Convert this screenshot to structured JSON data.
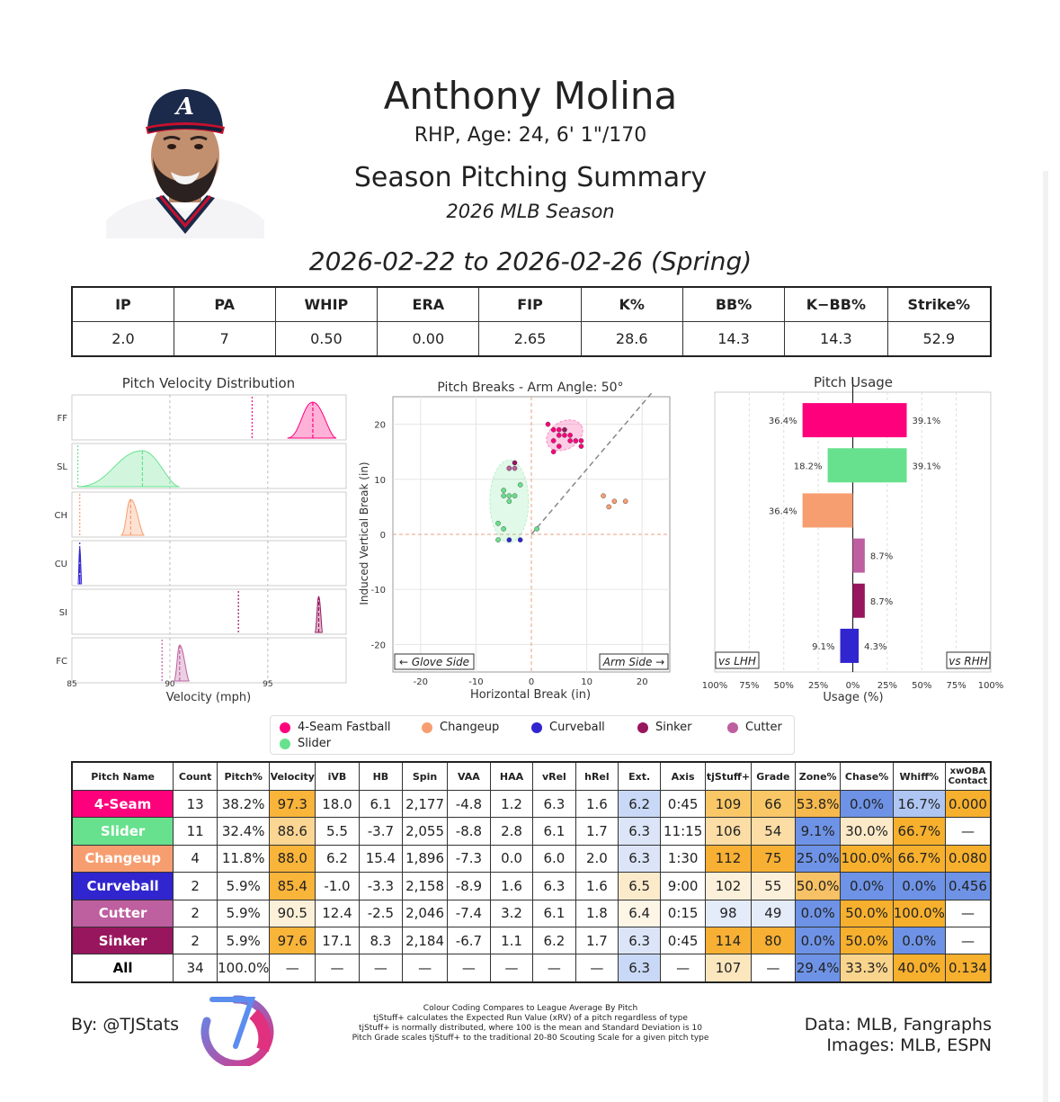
{
  "header": {
    "name": "Anthony Molina",
    "info": "RHP, Age: 24, 6' 1\"/170",
    "summary_title": "Season Pitching Summary",
    "season": "2026 MLB Season",
    "date_range": "2026-02-22 to 2026-02-26 (Spring)"
  },
  "colors": {
    "FF": "#FF007D",
    "SL": "#67E18D",
    "CH": "#F79E70",
    "CU": "#3025CE",
    "SI": "#98165D",
    "FC": "#BE5FA0",
    "good": "#F7B733",
    "bad": "#5B8DEF"
  },
  "stats": {
    "headers": [
      "IP",
      "PA",
      "WHIP",
      "ERA",
      "FIP",
      "K%",
      "BB%",
      "K−BB%",
      "Strike%"
    ],
    "values": [
      "2.0",
      "7",
      "0.50",
      "0.00",
      "2.65",
      "28.6",
      "14.3",
      "14.3",
      "52.9"
    ]
  },
  "chart_data": [
    {
      "type": "area",
      "title": "Pitch Velocity Distribution",
      "xlabel": "Velocity (mph)",
      "xlim": [
        85,
        99
      ],
      "xticks": [
        "85",
        "90",
        "95"
      ],
      "rows": [
        {
          "label": "FF",
          "color": "#FF007D",
          "min": 96.0,
          "max": 98.5,
          "mean": 97.3,
          "league": 94.2
        },
        {
          "label": "SL",
          "color": "#67E18D",
          "min": 85.3,
          "max": 90.5,
          "mean": 88.6,
          "league": 85.3
        },
        {
          "label": "CH",
          "color": "#F79E70",
          "min": 87.5,
          "max": 88.7,
          "mean": 88.0,
          "league": 85.4
        },
        {
          "label": "CU",
          "color": "#3025CE",
          "min": 85.3,
          "max": 85.5,
          "mean": 85.4,
          "league": 85.4
        },
        {
          "label": "SI",
          "color": "#98165D",
          "min": 97.4,
          "max": 97.8,
          "mean": 97.6,
          "league": 93.5
        },
        {
          "label": "FC",
          "color": "#BE5FA0",
          "min": 90.2,
          "max": 91.0,
          "mean": 90.5,
          "league": 89.6
        }
      ]
    },
    {
      "type": "scatter",
      "title": "Pitch Breaks - Arm Angle: 50°",
      "xlabel": "Horizontal Break (in)",
      "ylabel": "Induced Vertical Break (in)",
      "xlim": [
        -25,
        25
      ],
      "ylim": [
        -25,
        25
      ],
      "xticks": [
        "-20",
        "-10",
        "0",
        "10",
        "20"
      ],
      "yticks": [
        "20",
        "10",
        "0",
        "-10",
        "-20"
      ],
      "glove_label": "← Glove Side",
      "arm_label": "Arm Side →",
      "series": [
        {
          "code": "FF",
          "color": "#FF007D",
          "points": [
            [
              3,
              20
            ],
            [
              4,
              19
            ],
            [
              5,
              19
            ],
            [
              5,
              18
            ],
            [
              6,
              18
            ],
            [
              7,
              17
            ],
            [
              7,
              18
            ],
            [
              8,
              17
            ],
            [
              9,
              17
            ],
            [
              9,
              16
            ],
            [
              4,
              17
            ],
            [
              5,
              16
            ],
            [
              4,
              15
            ]
          ]
        },
        {
          "code": "SL",
          "color": "#67E18D",
          "points": [
            [
              -4,
              12
            ],
            [
              -5,
              8
            ],
            [
              -4,
              7
            ],
            [
              -3,
              7
            ],
            [
              -5,
              7
            ],
            [
              -2,
              9
            ],
            [
              -6,
              2
            ],
            [
              -5,
              1
            ],
            [
              -6,
              -1
            ],
            [
              1,
              1
            ],
            [
              -4,
              6
            ]
          ]
        },
        {
          "code": "CH",
          "color": "#F79E70",
          "points": [
            [
              13,
              7
            ],
            [
              15,
              6
            ],
            [
              17,
              6
            ],
            [
              14,
              5
            ]
          ]
        },
        {
          "code": "CU",
          "color": "#3025CE",
          "points": [
            [
              -4,
              -1
            ],
            [
              -2,
              -1
            ]
          ]
        },
        {
          "code": "SI",
          "color": "#98165D",
          "points": [
            [
              -3,
              13
            ],
            [
              6,
              19
            ]
          ]
        },
        {
          "code": "FC",
          "color": "#BE5FA0",
          "points": [
            [
              -3,
              12
            ],
            [
              -4,
              12
            ]
          ]
        }
      ],
      "ellipses": [
        {
          "color": "#FF007D",
          "cx": 6,
          "cy": 18,
          "rx": 3.5,
          "ry": 2.5,
          "rot": -30
        },
        {
          "color": "#67E18D",
          "cx": -4,
          "cy": 6,
          "rx": 3.5,
          "ry": 7.5,
          "rot": 0
        }
      ]
    },
    {
      "type": "bar",
      "title": "Pitch Usage",
      "xlabel": "Usage (%)",
      "xlim": [
        -100,
        100
      ],
      "xticks": [
        "100%",
        "75%",
        "50%",
        "25%",
        "0%",
        "25%",
        "50%",
        "75%",
        "100%"
      ],
      "lhh_label": "vs LHH",
      "rhh_label": "vs RHH",
      "series": [
        {
          "code": "FF",
          "color": "#FF007D",
          "lhh": 36.4,
          "rhh": 39.1,
          "lhh_label": "36.4%",
          "rhh_label": "39.1%"
        },
        {
          "code": "SL",
          "color": "#67E18D",
          "lhh": 18.2,
          "rhh": 39.1,
          "lhh_label": "18.2%",
          "rhh_label": "39.1%"
        },
        {
          "code": "CH",
          "color": "#F79E70",
          "lhh": 36.4,
          "rhh": 0,
          "lhh_label": "36.4%",
          "rhh_label": ""
        },
        {
          "code": "FC",
          "color": "#BE5FA0",
          "lhh": 0,
          "rhh": 8.7,
          "lhh_label": "",
          "rhh_label": "8.7%"
        },
        {
          "code": "SI",
          "color": "#98165D",
          "lhh": 0,
          "rhh": 8.7,
          "lhh_label": "",
          "rhh_label": "8.7%"
        },
        {
          "code": "CU",
          "color": "#3025CE",
          "lhh": 9.1,
          "rhh": 4.3,
          "lhh_label": "9.1%",
          "rhh_label": "4.3%"
        }
      ]
    }
  ],
  "legend": {
    "items": [
      {
        "label": "4-Seam Fastball",
        "color": "#FF007D"
      },
      {
        "label": "Changeup",
        "color": "#F79E70"
      },
      {
        "label": "Curveball",
        "color": "#3025CE"
      },
      {
        "label": "Sinker",
        "color": "#98165D"
      },
      {
        "label": "Cutter",
        "color": "#BE5FA0"
      },
      {
        "label": "Slider",
        "color": "#67E18D"
      }
    ]
  },
  "pitch_table": {
    "headers": [
      "Pitch Name",
      "Count",
      "Pitch%",
      "Velocity",
      "iVB",
      "HB",
      "Spin",
      "VAA",
      "HAA",
      "vRel",
      "hRel",
      "Ext.",
      "Axis",
      "tjStuff+",
      "Grade",
      "Zone%",
      "Chase%",
      "Whiff%",
      "xwOBA Contact"
    ],
    "rows": [
      {
        "color": "#FF007D",
        "cells": [
          "4-Seam",
          "13",
          "38.2%",
          "97.3",
          "18.0",
          "6.1",
          "2,177",
          "-4.8",
          "1.2",
          "6.3",
          "1.6",
          "6.2",
          "0:45",
          "109",
          "66",
          "53.8%",
          "0.0%",
          "16.7%",
          "0.000"
        ],
        "shade": [
          "",
          "",
          "",
          "#F9B43A",
          "",
          "",
          "",
          "",
          "",
          "",
          "",
          "#C9D8F6",
          "",
          "#F9C766",
          "#F9C766",
          "#F6B94E",
          "#6E93E6",
          "#AFC5F2",
          "#F6B02E"
        ]
      },
      {
        "color": "#67E18D",
        "cells": [
          "Slider",
          "11",
          "32.4%",
          "88.6",
          "5.5",
          "-3.7",
          "2,055",
          "-8.8",
          "2.8",
          "6.1",
          "1.7",
          "6.3",
          "11:15",
          "106",
          "54",
          "9.1%",
          "30.0%",
          "66.7%",
          "—"
        ],
        "shade": [
          "",
          "",
          "",
          "#FBD693",
          "",
          "",
          "",
          "",
          "",
          "",
          "",
          "#DCE5F7",
          "",
          "#FBDDA5",
          "#FBDDA5",
          "#6E93E6",
          "#FBE9C8",
          "#F6B02E",
          ""
        ]
      },
      {
        "color": "#F79E70",
        "cells": [
          "Changeup",
          "4",
          "11.8%",
          "88.0",
          "6.2",
          "15.4",
          "1,896",
          "-7.3",
          "0.0",
          "6.0",
          "2.0",
          "6.3",
          "1:30",
          "112",
          "75",
          "25.0%",
          "100.0%",
          "66.7%",
          "0.080"
        ],
        "shade": [
          "",
          "",
          "",
          "#F9B43A",
          "",
          "",
          "",
          "",
          "",
          "",
          "",
          "#DCE5F7",
          "",
          "#F7B033",
          "#F7B033",
          "#6E93E6",
          "#F6B02E",
          "#F6B02E",
          "#F6B02E"
        ]
      },
      {
        "color": "#3025CE",
        "cells": [
          "Curveball",
          "2",
          "5.9%",
          "85.4",
          "-1.0",
          "-3.3",
          "2,158",
          "-8.9",
          "1.6",
          "6.3",
          "1.6",
          "6.5",
          "9:00",
          "102",
          "55",
          "50.0%",
          "0.0%",
          "0.0%",
          "0.456"
        ],
        "shade": [
          "",
          "",
          "",
          "#F9B43A",
          "",
          "",
          "",
          "",
          "",
          "",
          "",
          "#FCEBCB",
          "",
          "#FCF0DA",
          "#FCF0DA",
          "#F7C165",
          "#6E93E6",
          "#6E93E6",
          "#6E93E6"
        ]
      },
      {
        "color": "#BE5FA0",
        "cells": [
          "Cutter",
          "2",
          "5.9%",
          "90.5",
          "12.4",
          "-2.5",
          "2,046",
          "-7.4",
          "3.2",
          "6.1",
          "1.8",
          "6.4",
          "0:15",
          "98",
          "49",
          "0.0%",
          "50.0%",
          "100.0%",
          "—"
        ],
        "shade": [
          "",
          "",
          "",
          "#FDF0D8",
          "",
          "",
          "",
          "",
          "",
          "",
          "",
          "#FDF5E6",
          "",
          "#E4EBF9",
          "#E4EBF9",
          "#6E93E6",
          "#F6B02E",
          "#F6B02E",
          ""
        ]
      },
      {
        "color": "#98165D",
        "cells": [
          "Sinker",
          "2",
          "5.9%",
          "97.6",
          "17.1",
          "8.3",
          "2,184",
          "-6.7",
          "1.1",
          "6.2",
          "1.7",
          "6.3",
          "0:45",
          "114",
          "80",
          "0.0%",
          "50.0%",
          "0.0%",
          "—"
        ],
        "shade": [
          "",
          "",
          "",
          "#F9B43A",
          "",
          "",
          "",
          "",
          "",
          "",
          "",
          "#DCE5F7",
          "",
          "#F7B033",
          "#F7B033",
          "#6E93E6",
          "#F6B02E",
          "#6E93E6",
          ""
        ]
      },
      {
        "color": "#FFFFFF",
        "cells": [
          "All",
          "34",
          "100.0%",
          "—",
          "—",
          "—",
          "—",
          "—",
          "—",
          "—",
          "—",
          "6.3",
          "—",
          "107",
          "—",
          "29.4%",
          "33.3%",
          "40.0%",
          "0.134"
        ],
        "shade": [
          "",
          "",
          "",
          "",
          "",
          "",
          "",
          "",
          "",
          "",
          "",
          "#C9D8F6",
          "",
          "#FCE6BD",
          "",
          "#6E93E6",
          "#F9D48C",
          "#F6B02E",
          "#F6B02E"
        ]
      }
    ]
  },
  "footer": {
    "byline": "By: @TJStats",
    "note_lines": [
      "Colour Coding Compares to League Average By Pitch",
      "tjStuff+ calculates the Expected Run Value (xRV) of a pitch regardless of type",
      "tjStuff+ is normally distributed, where 100 is the mean and Standard Deviation is 10",
      "Pitch Grade scales tjStuff+ to the traditional 20-80 Scouting Scale for a given pitch type"
    ],
    "credit_1": "Data: MLB, Fangraphs",
    "credit_2": "Images: MLB, ESPN"
  }
}
